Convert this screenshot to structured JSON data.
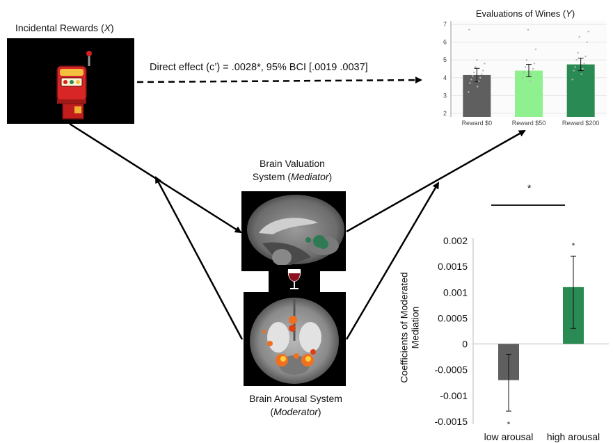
{
  "x_label_text": "Incidental Rewards (",
  "x_label_var": "X",
  "x_label_close": ")",
  "direct_effect": "Direct effect (c’) = .0028*, 95% BCI [.0019 .0037]",
  "mediator_line1": "Brain Valuation",
  "mediator_line2_pre": "System (",
  "mediator_line2_var": "Mediator",
  "mediator_line2_post": ")",
  "moderator_line1": "Brain Arousal System",
  "moderator_line2_pre": "(",
  "moderator_line2_var": "Moderator",
  "moderator_line2_post": ")",
  "icons": {
    "slot_machine": "slot-machine-icon",
    "wine_glass": "wine-glass-icon",
    "brain_sagittal": "brain-sagittal-scan",
    "brain_coronal": "brain-coronal-scan"
  },
  "colors": {
    "gray_bar": "#5f5f5f",
    "light_green_bar": "#8ef08e",
    "dark_green_bar": "#2a8a53",
    "activation_green": "#2f7a55",
    "activation_orange": "#f07020"
  },
  "chart_data": [
    {
      "type": "bar",
      "title_pre": "Evaluations of Wines (",
      "title_var": "Y",
      "title_post": ")",
      "categories": [
        "Reward $0",
        "Reward $50",
        "Reward $200"
      ],
      "values": [
        4.15,
        4.4,
        4.75
      ],
      "errors": [
        0.38,
        0.35,
        0.35
      ],
      "colors": [
        "#5f5f5f",
        "#8ef08e",
        "#2a8a53"
      ],
      "ylim": [
        1.8,
        7.2
      ],
      "yticks": [
        "2",
        "3",
        "4",
        "5",
        "6",
        "7"
      ],
      "grid": true,
      "scatter_points": [
        [
          0,
          3.2
        ],
        [
          0,
          3.5
        ],
        [
          0,
          3.7
        ],
        [
          0,
          3.8
        ],
        [
          0,
          3.9
        ],
        [
          0,
          4.0
        ],
        [
          0,
          4.1
        ],
        [
          0,
          4.2
        ],
        [
          0,
          4.3
        ],
        [
          0,
          4.4
        ],
        [
          0,
          4.6
        ],
        [
          0,
          4.8
        ],
        [
          0,
          5.0
        ],
        [
          0,
          6.7
        ],
        [
          1,
          3.8
        ],
        [
          1,
          4.0
        ],
        [
          1,
          4.2
        ],
        [
          1,
          4.3
        ],
        [
          1,
          4.5
        ],
        [
          1,
          4.6
        ],
        [
          1,
          4.8
        ],
        [
          1,
          5.0
        ],
        [
          1,
          5.6
        ],
        [
          1,
          6.7
        ],
        [
          2,
          3.9
        ],
        [
          2,
          4.2
        ],
        [
          2,
          4.4
        ],
        [
          2,
          4.5
        ],
        [
          2,
          4.6
        ],
        [
          2,
          4.8
        ],
        [
          2,
          5.0
        ],
        [
          2,
          5.2
        ],
        [
          2,
          5.4
        ],
        [
          2,
          6.0
        ],
        [
          2,
          6.3
        ],
        [
          2,
          6.6
        ]
      ]
    },
    {
      "type": "bar",
      "ylabel_line1": "Coefficients of Moderated",
      "ylabel_line2": "Mediation",
      "categories": [
        "low arousal",
        "high arousal"
      ],
      "values": [
        -0.0007,
        0.0011
      ],
      "error_low": [
        -0.0013,
        0.0003
      ],
      "error_high": [
        -0.0002,
        0.0017
      ],
      "colors": [
        "#5f5f5f",
        "#2a8a53"
      ],
      "ylim": [
        -0.0015,
        0.002
      ],
      "yticks": [
        "0.002",
        "0.0015",
        "0.001",
        "0.0005",
        "0",
        "-0.0005",
        "-0.001",
        "-0.0015"
      ],
      "ytick_values": [
        0.002,
        0.0015,
        0.001,
        0.0005,
        0,
        -0.0005,
        -0.001,
        -0.0015
      ],
      "outliers": [
        [
          0,
          -0.00153
        ],
        [
          1,
          0.00193
        ]
      ],
      "significance_marker": "*"
    }
  ]
}
